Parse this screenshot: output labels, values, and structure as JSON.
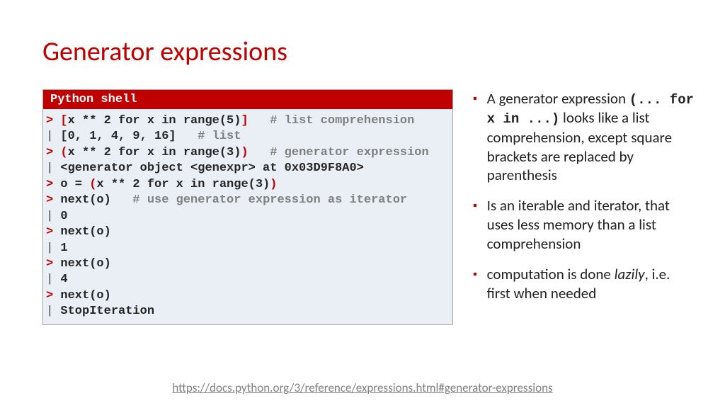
{
  "title": "Generator expressions",
  "code_panel": {
    "header": "Python shell",
    "header_bg": "#c00000",
    "header_fg": "#ffffff",
    "body_bg": "#eaeff5",
    "font_family": "Consolas",
    "font_size_pt": 13,
    "prompt_in_color": "#c00000",
    "prompt_out_color": "#808080",
    "bracket_color": "#c00000",
    "text_color": "#262626",
    "comment_color": "#808080",
    "lines": [
      {
        "prompt": ">",
        "open": "[",
        "code": "x ** 2 for x in range(5)",
        "close": "]",
        "comment": "   # list comprehension"
      },
      {
        "prompt": "|",
        "code": " [0, 1, 4, 9, 16]",
        "comment": "   # list"
      },
      {
        "prompt": ">",
        "open": "(",
        "code": "x ** 2 for x in range(3)",
        "close": ")",
        "comment": "   # generator expression"
      },
      {
        "prompt": "|",
        "code": " <generator object <genexpr> at 0x03D9F8A0>"
      },
      {
        "prompt": ">",
        "code": "o = ",
        "open": "(",
        "code2": "x ** 2 for x in range(3)",
        "close": ")"
      },
      {
        "prompt": ">",
        "code": "next(o)",
        "comment": "   # use generator expression as iterator"
      },
      {
        "prompt": "|",
        "code": " 0"
      },
      {
        "prompt": ">",
        "code": "next(o)"
      },
      {
        "prompt": "|",
        "code": " 1"
      },
      {
        "prompt": ">",
        "code": "next(o)"
      },
      {
        "prompt": "|",
        "code": " 4"
      },
      {
        "prompt": ">",
        "code": "next(o)"
      },
      {
        "prompt": "|",
        "code": " StopIteration"
      }
    ]
  },
  "bullets": [
    {
      "pre": "A generator expression ",
      "code": "(... for x in ...)",
      "post": " looks like a list comprehension, except square brackets are replaced by parenthesis"
    },
    {
      "pre": "Is an iterable and iterator, that uses less memory than a list comprehension"
    },
    {
      "pre": "computation is done ",
      "italic": "lazily",
      "post": ", i.e. first when needed"
    }
  ],
  "bullet_marker": "▪",
  "bullet_marker_color": "#c00000",
  "footer": {
    "url": "https://docs.python.org/3/reference/expressions.html#generator-expressions",
    "color": "#808080"
  },
  "title_color": "#c00000",
  "background_color": "#ffffff"
}
